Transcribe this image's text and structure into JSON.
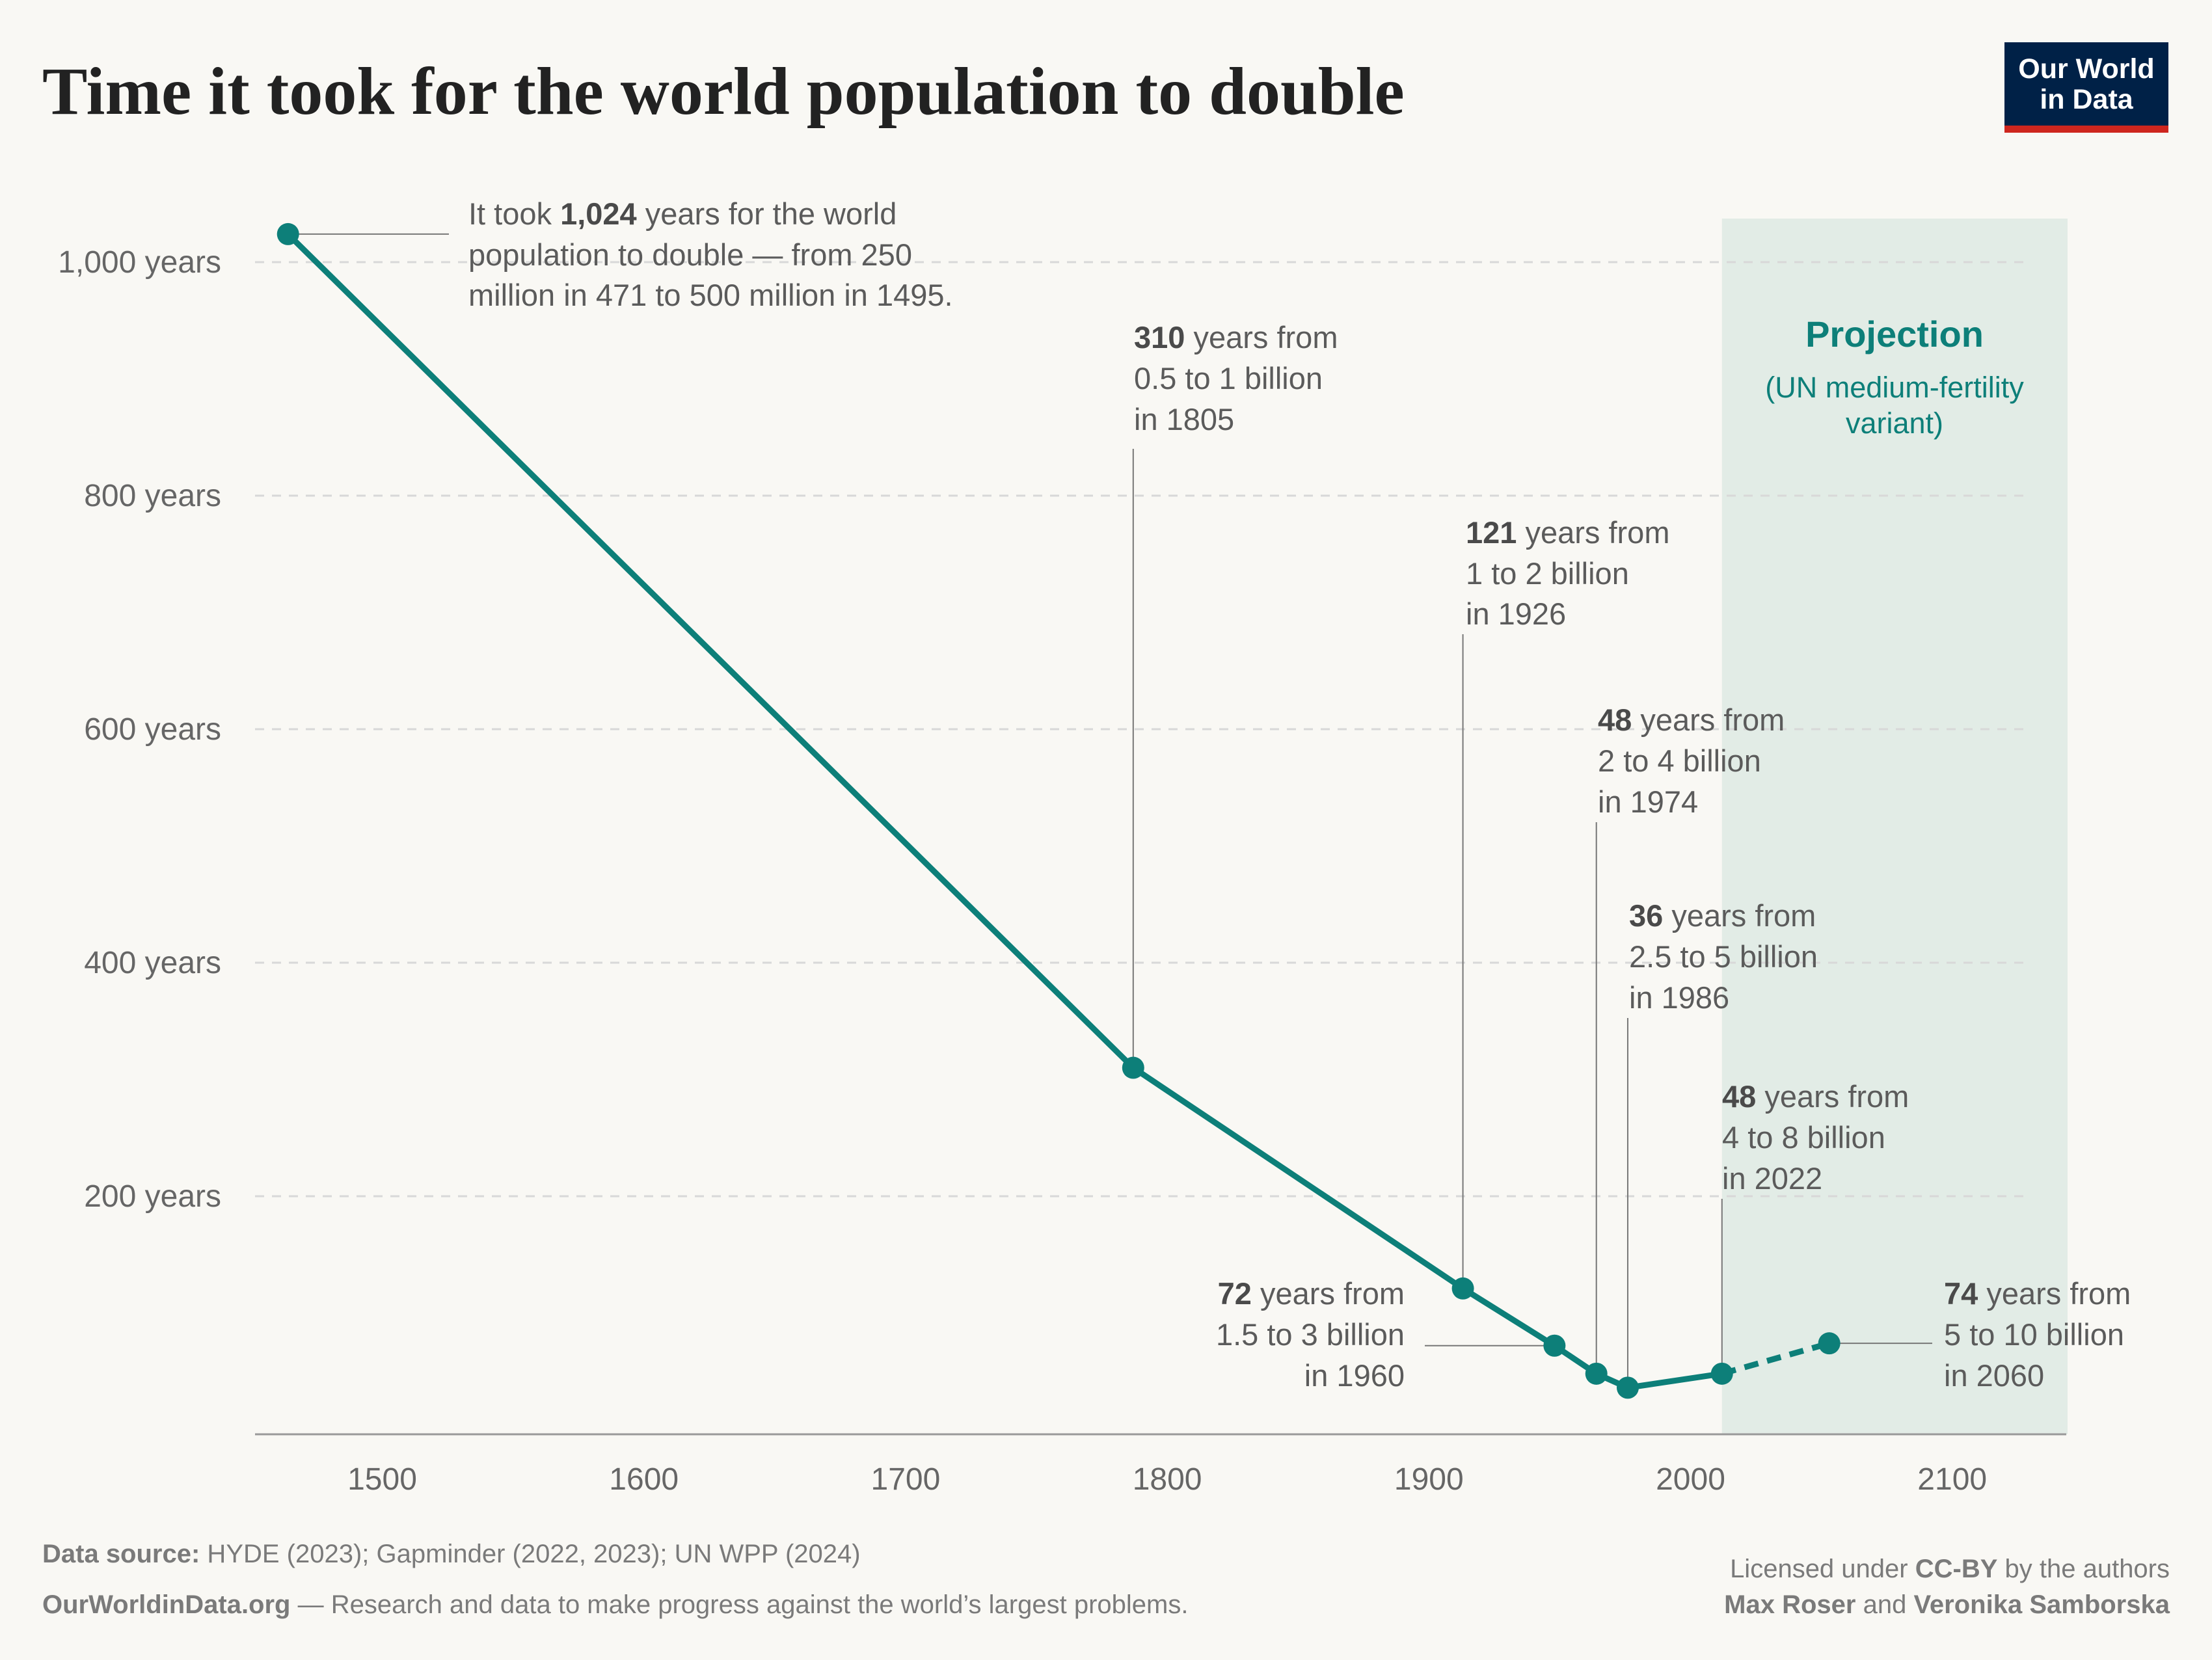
{
  "title": "Time it took for the world population to double",
  "logo": {
    "line1": "Our World",
    "line2": "in Data",
    "bg": "#002147",
    "bar": "#ce261e"
  },
  "colors": {
    "line": "#0d7f79",
    "projection_band": "#e2ece6",
    "background": "#f9f8f4"
  },
  "chart_data": {
    "type": "line",
    "title": "Time it took for the world population to double",
    "x": [
      1464,
      1787,
      1913,
      1948,
      1964,
      1976,
      2012,
      2053
    ],
    "values": [
      1024,
      310,
      121,
      72,
      48,
      36,
      48,
      74
    ],
    "projected_from_index": 6,
    "xlim": [
      1445,
      2145
    ],
    "ylim": [
      0,
      1050
    ],
    "x_ticks": [
      "1500",
      "1600",
      "1700",
      "1800",
      "1900",
      "2000",
      "2100"
    ],
    "x_tick_values": [
      1500,
      1600,
      1700,
      1800,
      1900,
      2000,
      2100
    ],
    "y_ticks": [
      "200 years",
      "400 years",
      "600 years",
      "800 years",
      "1,000 years"
    ],
    "y_tick_values": [
      200,
      400,
      600,
      800,
      1000
    ],
    "grid": "horizontal dashed",
    "projection_region": {
      "from": 2012,
      "label": "Projection",
      "sublabel1": "(UN medium-fertility",
      "sublabel2": "variant)"
    }
  },
  "annotations": [
    {
      "pre": "It took ",
      "bold": "1,024",
      "post": " years for the world",
      "l2": "population to double — from 250",
      "l3": "million in 471 to 500 million in 1495."
    },
    {
      "bold": "310",
      "post": " years from",
      "l2": "0.5 to 1 billion",
      "l3": "in 1805"
    },
    {
      "bold": "121",
      "post": " years from",
      "l2": "1 to 2 billion",
      "l3": "in 1926"
    },
    {
      "bold": "72",
      "post": " years from",
      "l2": "1.5 to 3 billion",
      "l3": "in 1960"
    },
    {
      "bold": "48",
      "post": " years from",
      "l2": "2 to 4 billion",
      "l3": "in 1974"
    },
    {
      "bold": "36",
      "post": " years from",
      "l2": "2.5 to 5 billion",
      "l3": "in 1986"
    },
    {
      "bold": "48",
      "post": " years from",
      "l2": "4 to 8 billion",
      "l3": "in 2022"
    },
    {
      "bold": "74",
      "post": " years from",
      "l2": "5 to 10 billion",
      "l3": "in 2060"
    }
  ],
  "footer": {
    "source_label": "Data source:",
    "source": " HYDE (2023); Gapminder (2022, 2023); UN WPP (2024)",
    "site": "OurWorldinData.org",
    "tagline": " — Research and data to make progress against the world’s largest problems.",
    "license_pre": "Licensed under ",
    "license": "CC-BY",
    "license_post": " by the authors",
    "author1": "Max Roser",
    "and": " and ",
    "author2": "Veronika Samborska"
  }
}
